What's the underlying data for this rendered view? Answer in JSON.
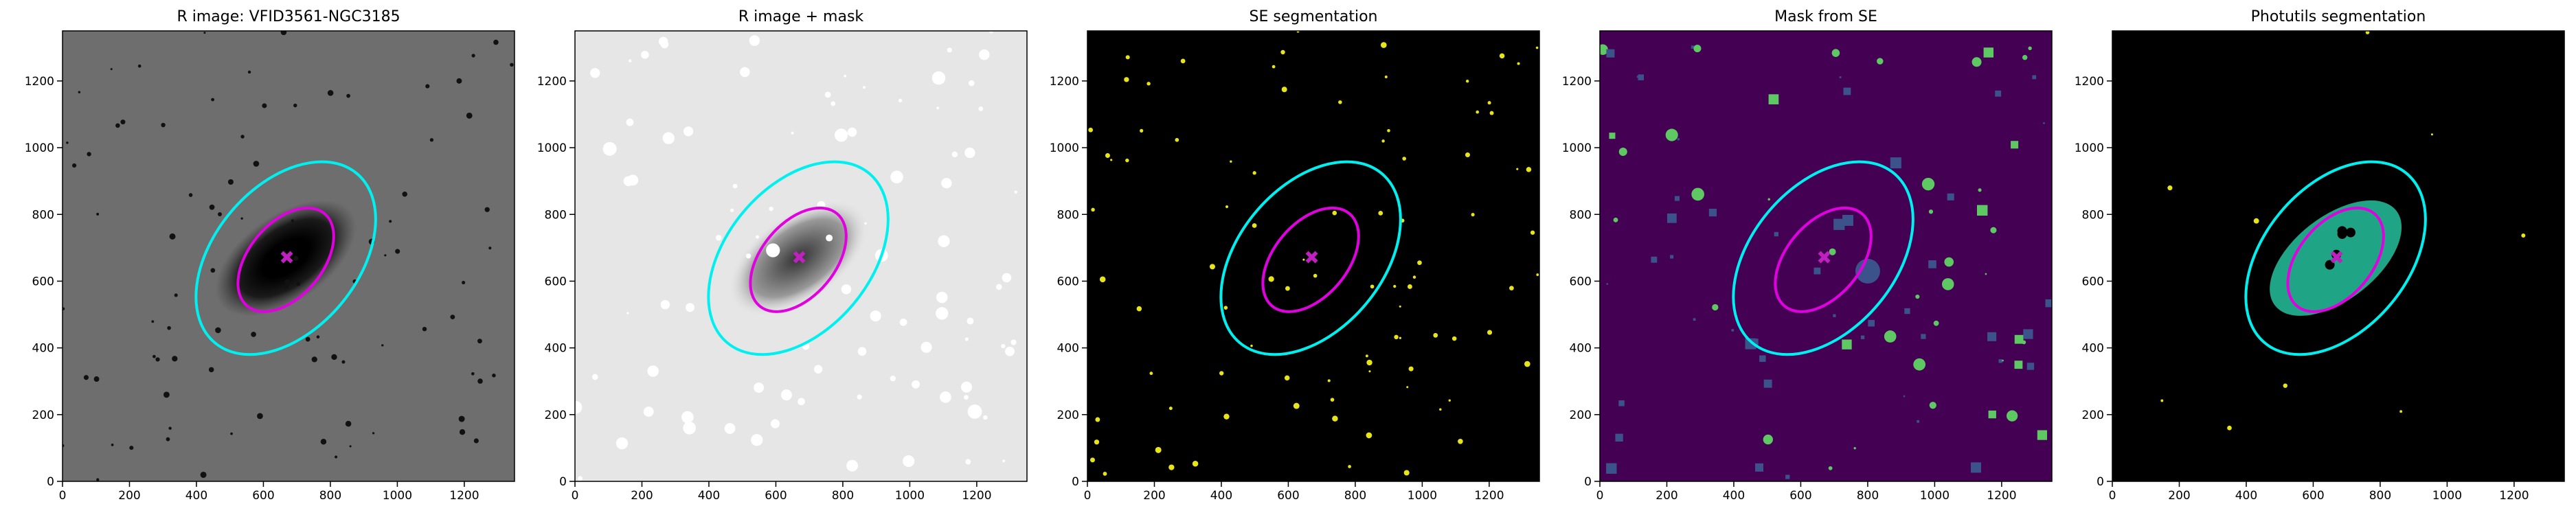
{
  "chart_data": [
    {
      "type": "image",
      "title": "R image: VFID3561-NGC3185",
      "background": "#6e6e6e",
      "xlim": [
        0,
        1350
      ],
      "ylim": [
        0,
        1350
      ],
      "xticks": [
        0,
        200,
        400,
        600,
        800,
        1000,
        1200
      ],
      "yticks": [
        0,
        200,
        400,
        600,
        800,
        1000,
        1200
      ],
      "ellipses": [
        {
          "color": "#00f0f0",
          "x": 667,
          "y": 669,
          "a": 330,
          "b": 215,
          "angle": 50
        },
        {
          "color": "#e000e0",
          "x": 667,
          "y": 664,
          "a": 180,
          "b": 110,
          "angle": 50
        }
      ],
      "marker": {
        "x": 670,
        "y": 672,
        "color": "#c020c0"
      }
    },
    {
      "type": "image",
      "title": "R image + mask",
      "background": "#e6e6e6",
      "xlim": [
        0,
        1350
      ],
      "ylim": [
        0,
        1350
      ],
      "xticks": [
        0,
        200,
        400,
        600,
        800,
        1000,
        1200
      ],
      "yticks": [
        0,
        200,
        400,
        600,
        800,
        1000,
        1200
      ],
      "ellipses": [
        {
          "color": "#00f0f0",
          "x": 667,
          "y": 669,
          "a": 330,
          "b": 215,
          "angle": 50
        },
        {
          "color": "#e000e0",
          "x": 667,
          "y": 664,
          "a": 180,
          "b": 110,
          "angle": 50
        }
      ],
      "marker": {
        "x": 670,
        "y": 672,
        "color": "#c020c0"
      }
    },
    {
      "type": "image",
      "title": "SE segmentation",
      "background": "#000000",
      "xlim": [
        0,
        1350
      ],
      "ylim": [
        0,
        1350
      ],
      "xticks": [
        0,
        200,
        400,
        600,
        800,
        1000,
        1200
      ],
      "yticks": [
        0,
        200,
        400,
        600,
        800,
        1000,
        1200
      ],
      "ellipses": [
        {
          "color": "#00f0f0",
          "x": 667,
          "y": 669,
          "a": 330,
          "b": 215,
          "angle": 50
        },
        {
          "color": "#e000e0",
          "x": 667,
          "y": 664,
          "a": 180,
          "b": 110,
          "angle": 50
        }
      ],
      "marker": {
        "x": 670,
        "y": 672,
        "color": "#c020c0"
      }
    },
    {
      "type": "image",
      "title": "Mask from SE",
      "background": "#440154",
      "xlim": [
        0,
        1350
      ],
      "ylim": [
        0,
        1350
      ],
      "xticks": [
        0,
        200,
        400,
        600,
        800,
        1000,
        1200
      ],
      "yticks": [
        0,
        200,
        400,
        600,
        800,
        1000,
        1200
      ],
      "ellipses": [
        {
          "color": "#00f0f0",
          "x": 667,
          "y": 669,
          "a": 330,
          "b": 215,
          "angle": 50
        },
        {
          "color": "#e000e0",
          "x": 667,
          "y": 664,
          "a": 180,
          "b": 110,
          "angle": 50
        }
      ],
      "marker": {
        "x": 670,
        "y": 672,
        "color": "#c020c0"
      }
    },
    {
      "type": "image",
      "title": "Photutils segmentation",
      "background": "#000000",
      "xlim": [
        0,
        1350
      ],
      "ylim": [
        0,
        1350
      ],
      "xticks": [
        0,
        200,
        400,
        600,
        800,
        1000,
        1200
      ],
      "yticks": [
        0,
        200,
        400,
        600,
        800,
        1000,
        1200
      ],
      "ellipses": [
        {
          "color": "#00f0f0",
          "x": 667,
          "y": 669,
          "a": 330,
          "b": 215,
          "angle": 50
        },
        {
          "color": "#e000e0",
          "x": 667,
          "y": 664,
          "a": 180,
          "b": 110,
          "angle": 50
        }
      ],
      "marker": {
        "x": 670,
        "y": 672,
        "color": "#c020c0"
      }
    }
  ]
}
